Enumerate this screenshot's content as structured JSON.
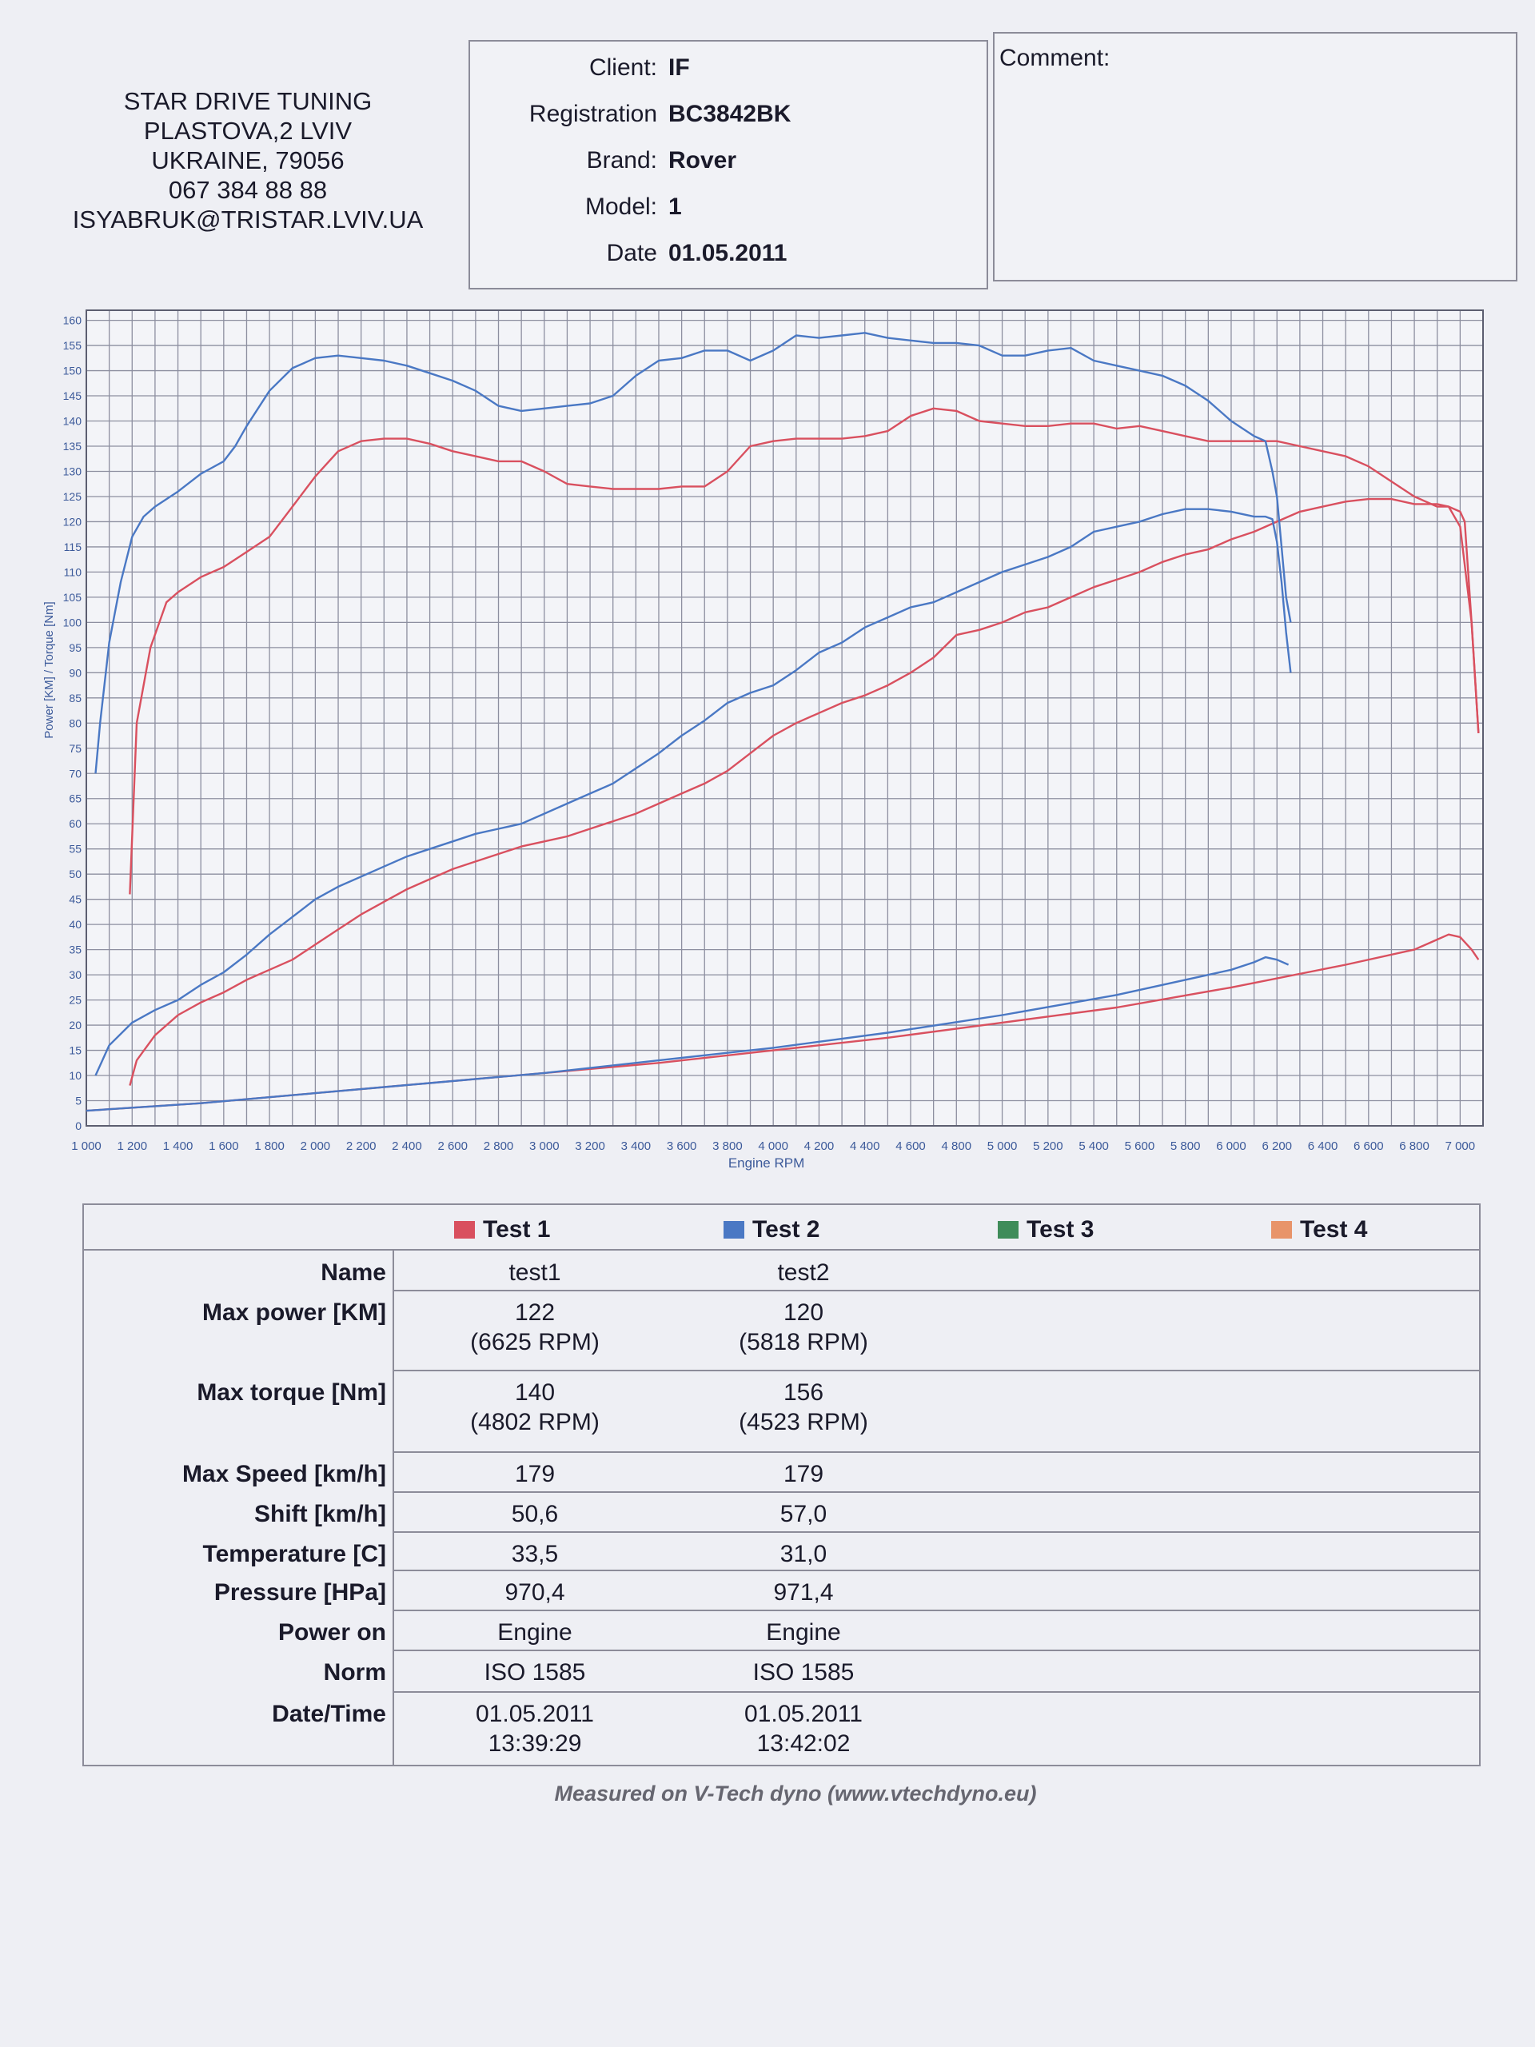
{
  "company": {
    "lines": [
      "STAR DRIVE TUNING",
      "PLASTOVA,2 LVIV",
      "UKRAINE, 79056",
      "067 384 88 88",
      "ISYABRUK@TRISTAR.LVIV.UA"
    ]
  },
  "info": {
    "client_label": "Client:",
    "client": "IF",
    "registration_label": "Registration",
    "registration": "BC3842BK",
    "brand_label": "Brand:",
    "brand": "Rover",
    "model_label": "Model:",
    "model": "1",
    "date_label": "Date",
    "date": "01.05.2011"
  },
  "comment": {
    "label": "Comment:",
    "text": ""
  },
  "chart_data": {
    "type": "line",
    "title": "",
    "xlabel": "Engine RPM",
    "ylabel": "Power [KM] / Torque [Nm]",
    "xlim": [
      1000,
      7100
    ],
    "ylim": [
      0,
      162
    ],
    "grid": true,
    "x_ticks": [
      1000,
      1200,
      1400,
      1600,
      1800,
      2000,
      2200,
      2400,
      2600,
      2800,
      3000,
      3200,
      3400,
      3600,
      3800,
      4000,
      4200,
      4400,
      4600,
      4800,
      5000,
      5200,
      5400,
      5600,
      5800,
      6000,
      6200,
      6400,
      6600,
      6800,
      7000
    ],
    "x_tick_labels": [
      "1 000",
      "1 200",
      "1 400",
      "1 600",
      "1 800",
      "2 000",
      "2 200",
      "2 400",
      "2 600",
      "2 800",
      "3 000",
      "3 200",
      "3 400",
      "3 600",
      "3 800",
      "4 000",
      "4 200",
      "4 400",
      "4 600",
      "4 800",
      "5 000",
      "5 200",
      "5 400",
      "5 600",
      "5 800",
      "6 000",
      "6 200",
      "6 400",
      "6 600",
      "6 800",
      "7 000"
    ],
    "y_ticks": [
      0,
      5,
      10,
      15,
      20,
      25,
      30,
      35,
      40,
      45,
      50,
      55,
      60,
      65,
      70,
      75,
      80,
      85,
      90,
      95,
      100,
      105,
      110,
      115,
      120,
      125,
      130,
      135,
      140,
      145,
      150,
      155,
      160
    ],
    "colors": {
      "test1": "#d9505f",
      "test2": "#4a78c4"
    },
    "series": [
      {
        "test": "test1",
        "kind": "torque",
        "x": [
          1190,
          1220,
          1280,
          1350,
          1400,
          1500,
          1600,
          1700,
          1800,
          1900,
          2000,
          2100,
          2200,
          2300,
          2400,
          2500,
          2600,
          2700,
          2800,
          2900,
          3000,
          3100,
          3200,
          3300,
          3400,
          3500,
          3600,
          3700,
          3800,
          3900,
          4000,
          4100,
          4200,
          4300,
          4400,
          4500,
          4600,
          4700,
          4800,
          4900,
          5000,
          5100,
          5200,
          5300,
          5400,
          5500,
          5600,
          5700,
          5800,
          5900,
          6000,
          6100,
          6200,
          6300,
          6400,
          6500,
          6600,
          6700,
          6800,
          6900,
          6950,
          7000,
          7020,
          7050,
          7080
        ],
        "y": [
          46,
          80,
          95,
          104,
          106,
          109,
          111,
          114,
          117,
          123,
          129,
          134,
          136,
          136.5,
          136.5,
          135.5,
          134,
          133,
          132,
          132,
          130,
          127.5,
          127,
          126.5,
          126.5,
          126.5,
          127,
          127,
          130,
          135,
          136,
          136.5,
          136.5,
          136.5,
          137,
          138,
          141,
          142.5,
          142,
          140,
          139.5,
          139,
          139,
          139.5,
          139.5,
          138.5,
          139,
          138,
          137,
          136,
          136,
          136,
          136,
          135,
          134,
          133,
          131,
          128,
          125,
          123,
          123,
          122,
          120,
          100,
          78
        ]
      },
      {
        "test": "test1",
        "kind": "power",
        "x": [
          1190,
          1220,
          1300,
          1400,
          1500,
          1600,
          1700,
          1800,
          1900,
          2000,
          2100,
          2200,
          2300,
          2400,
          2500,
          2600,
          2700,
          2800,
          2900,
          3000,
          3100,
          3200,
          3300,
          3400,
          3500,
          3600,
          3700,
          3800,
          3900,
          4000,
          4100,
          4200,
          4300,
          4400,
          4500,
          4600,
          4700,
          4800,
          4900,
          5000,
          5100,
          5200,
          5300,
          5400,
          5500,
          5600,
          5700,
          5800,
          5900,
          6000,
          6100,
          6200,
          6300,
          6400,
          6500,
          6600,
          6700,
          6800,
          6900,
          6950,
          7000,
          7050,
          7080
        ],
        "y": [
          8,
          13,
          18,
          22,
          24.5,
          26.5,
          29,
          31,
          33,
          36,
          39,
          42,
          44.5,
          47,
          49,
          51,
          52.5,
          54,
          55.5,
          56.5,
          57.5,
          59,
          60.5,
          62,
          64,
          66,
          68,
          70.5,
          74,
          77.5,
          80,
          82,
          84,
          85.5,
          87.5,
          90,
          93,
          97.5,
          98.5,
          100,
          102,
          103,
          105,
          107,
          108.5,
          110,
          112,
          113.5,
          114.5,
          116.5,
          118,
          120,
          122,
          123,
          124,
          124.5,
          124.5,
          123.5,
          123.5,
          123,
          119,
          100,
          78
        ]
      },
      {
        "test": "test2",
        "kind": "torque",
        "x": [
          1040,
          1060,
          1100,
          1150,
          1200,
          1250,
          1300,
          1400,
          1500,
          1600,
          1650,
          1700,
          1800,
          1900,
          2000,
          2100,
          2200,
          2300,
          2400,
          2500,
          2600,
          2700,
          2800,
          2900,
          3000,
          3100,
          3200,
          3300,
          3400,
          3500,
          3600,
          3700,
          3800,
          3900,
          4000,
          4100,
          4200,
          4300,
          4400,
          4500,
          4600,
          4700,
          4800,
          4900,
          5000,
          5100,
          5200,
          5300,
          5400,
          5500,
          5600,
          5700,
          5800,
          5900,
          6000,
          6100,
          6150,
          6180,
          6200,
          6220,
          6240,
          6260
        ],
        "y": [
          70,
          80,
          96,
          108,
          117,
          121,
          123,
          126,
          129.5,
          132,
          135,
          139,
          146,
          150.5,
          152.5,
          153,
          152.5,
          152,
          151,
          149.5,
          148,
          146,
          143,
          142,
          142.5,
          143,
          143.5,
          145,
          149,
          152,
          152.5,
          154,
          154,
          152,
          154,
          157,
          156.5,
          157,
          157.5,
          156.5,
          156,
          155.5,
          155.5,
          155,
          153,
          153,
          154,
          154.5,
          152,
          151,
          150,
          149,
          147,
          144,
          140,
          137,
          136,
          130,
          125,
          115,
          105,
          100
        ]
      },
      {
        "test": "test2",
        "kind": "power",
        "x": [
          1040,
          1100,
          1200,
          1300,
          1400,
          1500,
          1600,
          1700,
          1800,
          1900,
          2000,
          2100,
          2200,
          2300,
          2400,
          2500,
          2600,
          2700,
          2800,
          2900,
          3000,
          3100,
          3200,
          3300,
          3400,
          3500,
          3600,
          3700,
          3800,
          3900,
          4000,
          4100,
          4200,
          4300,
          4400,
          4500,
          4600,
          4700,
          4800,
          4900,
          5000,
          5100,
          5200,
          5300,
          5400,
          5500,
          5600,
          5700,
          5800,
          5900,
          6000,
          6100,
          6150,
          6180,
          6200,
          6220,
          6240,
          6260
        ],
        "y": [
          10,
          16,
          20.5,
          23,
          25,
          28,
          30.5,
          34,
          38,
          41.5,
          45,
          47.5,
          49.5,
          51.5,
          53.5,
          55,
          56.5,
          58,
          59,
          60,
          62,
          64,
          66,
          68,
          71,
          74,
          77.5,
          80.5,
          84,
          86,
          87.5,
          90.5,
          94,
          96,
          99,
          101,
          103,
          104,
          106,
          108,
          110,
          111.5,
          113,
          115,
          118,
          119,
          120,
          121.5,
          122.5,
          122.5,
          122,
          121,
          121,
          120.5,
          116,
          108,
          98,
          90
        ]
      },
      {
        "test": "test1",
        "kind": "lower",
        "x": [
          1000,
          1500,
          2000,
          2500,
          3000,
          3500,
          4000,
          4500,
          5000,
          5500,
          6000,
          6500,
          6800,
          6900,
          6950,
          7000,
          7050,
          7080
        ],
        "y": [
          3,
          4.5,
          6.5,
          8.5,
          10.5,
          12.5,
          15,
          17.5,
          20.5,
          23.5,
          27.5,
          32,
          35,
          37,
          38,
          37.5,
          35,
          33
        ]
      },
      {
        "test": "test2",
        "kind": "lower",
        "x": [
          1000,
          1500,
          2000,
          2500,
          3000,
          3500,
          4000,
          4500,
          5000,
          5500,
          6000,
          6100,
          6150,
          6200,
          6250
        ],
        "y": [
          3,
          4.5,
          6.5,
          8.5,
          10.5,
          13,
          15.5,
          18.5,
          22,
          26,
          31,
          32.5,
          33.5,
          33,
          32
        ]
      }
    ]
  },
  "legend": [
    {
      "label": "Test 1",
      "color": "#d9505f"
    },
    {
      "label": "Test 2",
      "color": "#4a78c4"
    },
    {
      "label": "Test 3",
      "color": "#3f8c5a"
    },
    {
      "label": "Test 4",
      "color": "#e8946a"
    }
  ],
  "table": {
    "rows": [
      {
        "label": "Name",
        "t1": [
          "test1"
        ],
        "t2": [
          "test2"
        ]
      },
      {
        "label": "Max power [KM]",
        "t1": [
          "122",
          "(6625 RPM)"
        ],
        "t2": [
          "120",
          "(5818 RPM)"
        ]
      },
      {
        "label": "Max torque [Nm]",
        "t1": [
          "140",
          "(4802 RPM)"
        ],
        "t2": [
          "156",
          "(4523 RPM)"
        ]
      },
      {
        "label": "Max Speed [km/h]",
        "t1": [
          "179"
        ],
        "t2": [
          "179"
        ]
      },
      {
        "label": "Shift [km/h]",
        "t1": [
          "50,6"
        ],
        "t2": [
          "57,0"
        ]
      },
      {
        "label": "Temperature [C]",
        "t1": [
          "33,5"
        ],
        "t2": [
          "31,0"
        ]
      },
      {
        "label": "Pressure [HPa]",
        "t1": [
          "970,4"
        ],
        "t2": [
          "971,4"
        ]
      },
      {
        "label": "Power on",
        "t1": [
          "Engine"
        ],
        "t2": [
          "Engine"
        ]
      },
      {
        "label": "Norm",
        "t1": [
          "ISO 1585"
        ],
        "t2": [
          "ISO 1585"
        ]
      },
      {
        "label": "Date/Time",
        "t1": [
          "01.05.2011",
          "13:39:29"
        ],
        "t2": [
          "01.05.2011",
          "13:42:02"
        ]
      }
    ]
  },
  "footer": "Measured on V-Tech dyno (www.vtechdyno.eu)"
}
